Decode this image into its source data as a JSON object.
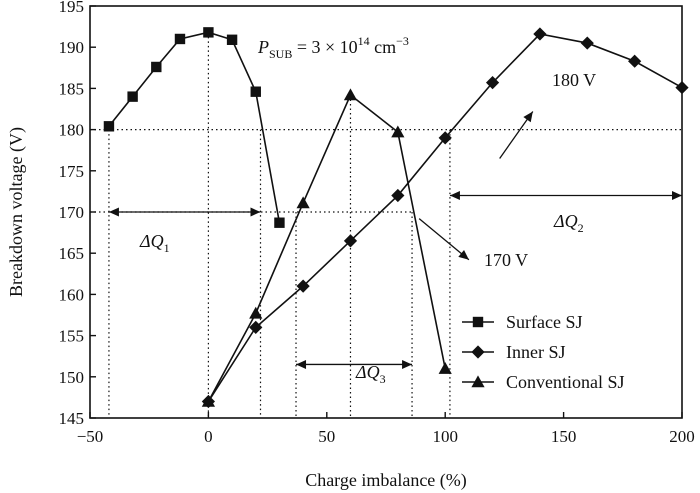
{
  "chart_data": {
    "type": "line",
    "xlabel": "Charge imbalance (%)",
    "ylabel": "Breakdown voltage (V)",
    "xlim": [
      -50,
      200
    ],
    "ylim": [
      145,
      195
    ],
    "xticks": [
      -50,
      0,
      50,
      100,
      150,
      200
    ],
    "yticks": [
      145,
      150,
      155,
      160,
      165,
      170,
      175,
      180,
      185,
      190,
      195
    ],
    "series": [
      {
        "name": "Surface SJ",
        "marker": "square",
        "x": [
          -42,
          -32,
          -22,
          -12,
          0,
          10,
          20,
          30
        ],
        "y": [
          180.4,
          184.0,
          187.6,
          191.0,
          191.8,
          190.9,
          184.6,
          168.7
        ]
      },
      {
        "name": "Inner SJ",
        "marker": "diamond",
        "x": [
          0,
          20,
          40,
          60,
          80,
          100,
          120,
          140,
          160,
          180,
          200
        ],
        "y": [
          147.0,
          156.0,
          161.0,
          166.5,
          172.0,
          179.0,
          185.7,
          191.6,
          190.5,
          188.3,
          185.1
        ]
      },
      {
        "name": "Conventional SJ",
        "marker": "triangle",
        "x": [
          0,
          20,
          40,
          60,
          80,
          100
        ],
        "y": [
          147.0,
          157.7,
          171.1,
          184.2,
          179.7,
          151.0
        ]
      }
    ],
    "reference_lines": [
      {
        "axis": "y",
        "value": 180
      },
      {
        "axis": "y",
        "value": 170
      },
      {
        "axis": "x",
        "value": -42
      },
      {
        "axis": "x",
        "value": 0
      },
      {
        "axis": "x",
        "value": 22
      },
      {
        "axis": "x",
        "value": 37
      },
      {
        "axis": "x",
        "value": 60
      },
      {
        "axis": "x",
        "value": 86
      },
      {
        "axis": "x",
        "value": 102
      }
    ],
    "annotations": {
      "psub": {
        "base": "P",
        "sub": "SUB",
        "mid": " = 3 × 10",
        "sup": "14",
        "tail": " cm",
        "sup2": "−3"
      },
      "label_180": "180 V",
      "label_170": "170 V",
      "dq1": {
        "base": "ΔQ",
        "sub": "1"
      },
      "dq2": {
        "base": "ΔQ",
        "sub": "2"
      },
      "dq3": {
        "base": "ΔQ",
        "sub": "3"
      }
    },
    "legend": {
      "position": "bottom-right",
      "entries": [
        "Surface SJ",
        "Inner SJ",
        "Conventional SJ"
      ]
    },
    "grid": false
  }
}
